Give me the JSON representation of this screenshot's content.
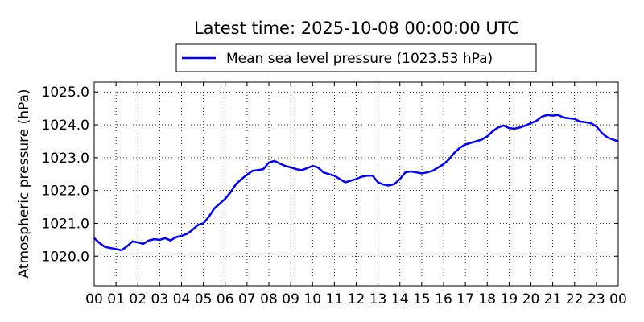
{
  "chart_data": {
    "type": "line",
    "title": "Latest time: 2025-10-08 00:00:00 UTC",
    "xlabel": "",
    "ylabel": "Atmospheric pressure (hPa)",
    "xlim": [
      0,
      24
    ],
    "ylim": [
      1019.1,
      1025.3
    ],
    "x_ticks": [
      0,
      1,
      2,
      3,
      4,
      5,
      6,
      7,
      8,
      9,
      10,
      11,
      12,
      13,
      14,
      15,
      16,
      17,
      18,
      19,
      20,
      21,
      22,
      23,
      24
    ],
    "x_tick_labels": [
      "00",
      "01",
      "02",
      "03",
      "04",
      "05",
      "06",
      "07",
      "08",
      "09",
      "10",
      "11",
      "12",
      "13",
      "14",
      "15",
      "16",
      "17",
      "18",
      "19",
      "20",
      "21",
      "22",
      "23",
      "00"
    ],
    "y_ticks": [
      1020.0,
      1021.0,
      1022.0,
      1023.0,
      1024.0,
      1025.0
    ],
    "y_tick_labels": [
      "1020.0",
      "1021.0",
      "1022.0",
      "1023.0",
      "1024.0",
      "1025.0"
    ],
    "grid": true,
    "legend_position": "top-center",
    "series": [
      {
        "name": "Mean sea level pressure (1023.53 hPa)",
        "color": "#0000ff",
        "x": [
          0,
          0.25,
          0.5,
          0.75,
          1.0,
          1.25,
          1.5,
          1.75,
          2.0,
          2.25,
          2.5,
          2.75,
          3.0,
          3.25,
          3.5,
          3.75,
          4.0,
          4.25,
          4.5,
          4.75,
          5.0,
          5.25,
          5.5,
          5.75,
          6.0,
          6.25,
          6.5,
          6.75,
          7.0,
          7.25,
          7.5,
          7.75,
          8.0,
          8.25,
          8.5,
          8.75,
          9.0,
          9.25,
          9.5,
          9.75,
          10.0,
          10.25,
          10.5,
          10.75,
          11.0,
          11.25,
          11.5,
          11.75,
          12.0,
          12.25,
          12.5,
          12.75,
          13.0,
          13.25,
          13.5,
          13.75,
          14.0,
          14.25,
          14.5,
          14.75,
          15.0,
          15.25,
          15.5,
          15.75,
          16.0,
          16.25,
          16.5,
          16.75,
          17.0,
          17.25,
          17.5,
          17.75,
          18.0,
          18.25,
          18.5,
          18.75,
          19.0,
          19.25,
          19.5,
          19.75,
          20.0,
          20.25,
          20.5,
          20.75,
          21.0,
          21.25,
          21.5,
          21.75,
          22.0,
          22.25,
          22.5,
          22.75,
          23.0,
          23.25,
          23.5,
          23.75,
          24.0
        ],
        "y": [
          1020.55,
          1020.4,
          1020.28,
          1020.25,
          1020.22,
          1020.18,
          1020.3,
          1020.45,
          1020.42,
          1020.38,
          1020.48,
          1020.52,
          1020.5,
          1020.55,
          1020.48,
          1020.58,
          1020.62,
          1020.68,
          1020.8,
          1020.95,
          1021.0,
          1021.2,
          1021.45,
          1021.6,
          1021.75,
          1021.95,
          1022.2,
          1022.35,
          1022.48,
          1022.6,
          1022.62,
          1022.65,
          1022.85,
          1022.9,
          1022.82,
          1022.75,
          1022.7,
          1022.65,
          1022.62,
          1022.68,
          1022.75,
          1022.7,
          1022.55,
          1022.5,
          1022.45,
          1022.35,
          1022.25,
          1022.3,
          1022.35,
          1022.42,
          1022.45,
          1022.45,
          1022.25,
          1022.18,
          1022.15,
          1022.2,
          1022.35,
          1022.55,
          1022.58,
          1022.55,
          1022.52,
          1022.55,
          1022.6,
          1022.7,
          1022.8,
          1022.95,
          1023.15,
          1023.3,
          1023.4,
          1023.45,
          1023.5,
          1023.55,
          1023.65,
          1023.8,
          1023.92,
          1023.98,
          1023.9,
          1023.88,
          1023.92,
          1023.98,
          1024.05,
          1024.12,
          1024.25,
          1024.3,
          1024.28,
          1024.3,
          1024.22,
          1024.2,
          1024.18,
          1024.1,
          1024.08,
          1024.05,
          1023.95,
          1023.75,
          1023.62,
          1023.55,
          1023.5
        ]
      }
    ]
  }
}
